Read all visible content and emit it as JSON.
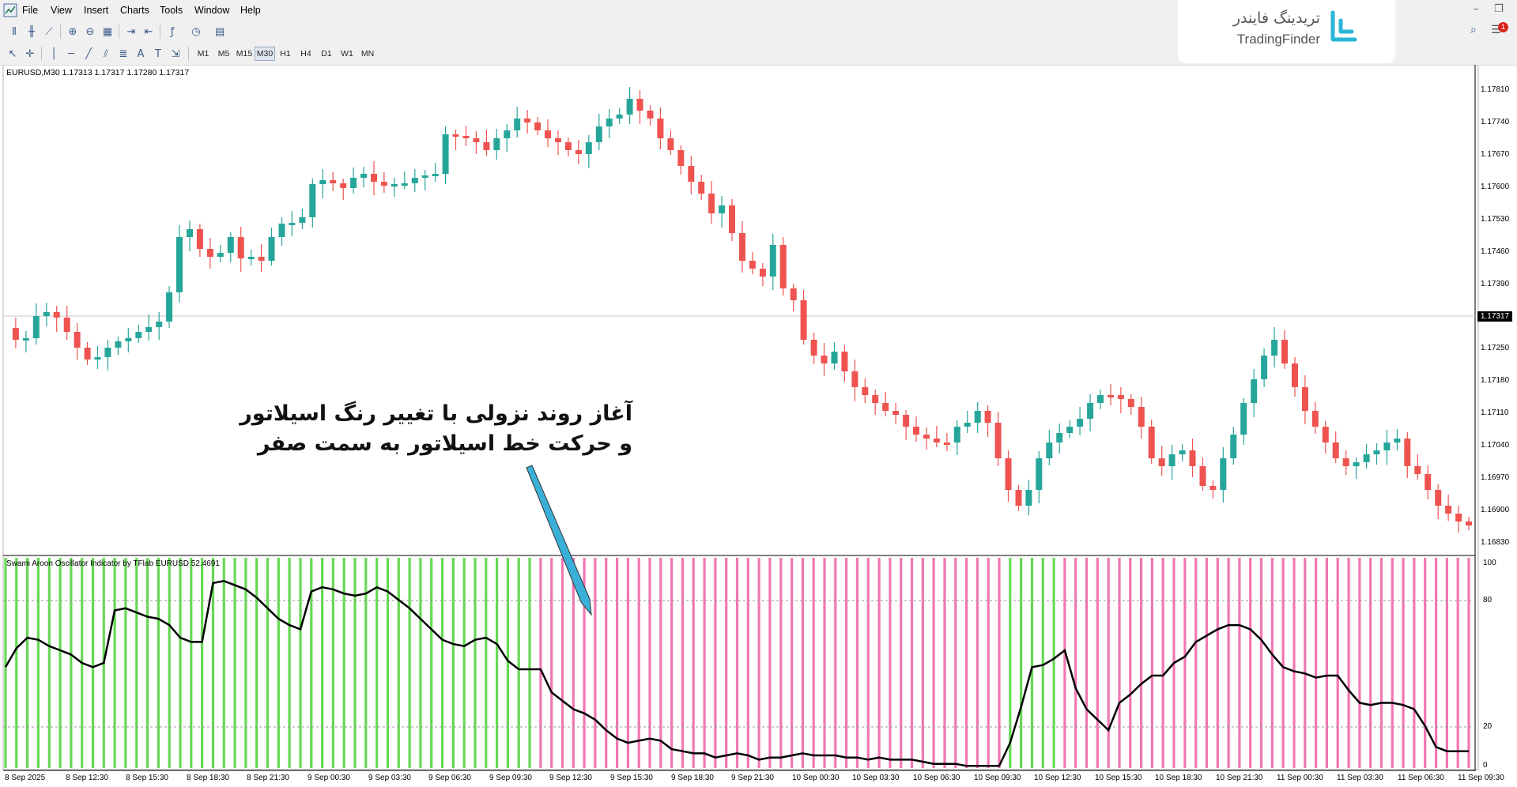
{
  "menu": [
    "File",
    "View",
    "Insert",
    "Charts",
    "Tools",
    "Window",
    "Help"
  ],
  "timeframes": [
    "M1",
    "M5",
    "M15",
    "M30",
    "H1",
    "H4",
    "D1",
    "W1",
    "MN"
  ],
  "active_timeframe": "M30",
  "notification_count": "1",
  "brand": {
    "fa": "تریدینگ فایندر",
    "en": "TradingFinder",
    "color": "#29b6d6"
  },
  "chart": {
    "symbol_line": "EURUSD,M30  1.17313 1.17317 1.17280 1.17317",
    "current_price": "1.17317",
    "price_labels": [
      "1.17810",
      "1.17740",
      "1.17670",
      "1.17600",
      "1.17530",
      "1.17460",
      "1.17390",
      "1.17250",
      "1.17180",
      "1.17110",
      "1.17040",
      "1.16970",
      "1.16900",
      "1.16830"
    ],
    "colors": {
      "bull": "#26a69a",
      "bear": "#ef5350"
    }
  },
  "indicator": {
    "label": "Swami Aroon Oscillator Indicator by TFlab EURUSD 52.4691",
    "scale": [
      "100",
      "80",
      "20",
      "0"
    ],
    "colors": {
      "bull_bar": "#4cd137",
      "bear_bar": "#ee5fa5",
      "line": "#000000"
    },
    "series": [
      48,
      57,
      62,
      61,
      58,
      56,
      54,
      50,
      48,
      50,
      75,
      76,
      74,
      72,
      71,
      68,
      62,
      60,
      60,
      88,
      89,
      87,
      85,
      81,
      76,
      71,
      68,
      66,
      84,
      86,
      85,
      83,
      82,
      83,
      86,
      84,
      80,
      76,
      71,
      66,
      61,
      59,
      58,
      61,
      62,
      59,
      51,
      47,
      47,
      47,
      36,
      32,
      28,
      26,
      23,
      18,
      14,
      12,
      13,
      14,
      13,
      9,
      8,
      7,
      7,
      5,
      6,
      7,
      6,
      4,
      5,
      5,
      6,
      7,
      6,
      6,
      6,
      5,
      5,
      4,
      5,
      4,
      4,
      4,
      3,
      2,
      2,
      2,
      1,
      1,
      1,
      1,
      12,
      29,
      48,
      49,
      52,
      56,
      38,
      28,
      23,
      18,
      31,
      35,
      40,
      44,
      44,
      50,
      53,
      60,
      63,
      66,
      68,
      68,
      66,
      61,
      54,
      48,
      46,
      45,
      43,
      44,
      44,
      37,
      31,
      30,
      31,
      31,
      30,
      28,
      20,
      10,
      8,
      8,
      8
    ]
  },
  "time_labels": [
    "8 Sep 2025",
    "8 Sep 12:30",
    "8 Sep 15:30",
    "8 Sep 18:30",
    "8 Sep 21:30",
    "9 Sep 00:30",
    "9 Sep 03:30",
    "9 Sep 06:30",
    "9 Sep 09:30",
    "9 Sep 12:30",
    "9 Sep 15:30",
    "9 Sep 18:30",
    "9 Sep 21:30",
    "10 Sep 00:30",
    "10 Sep 03:30",
    "10 Sep 06:30",
    "10 Sep 09:30",
    "10 Sep 12:30",
    "10 Sep 15:30",
    "10 Sep 18:30",
    "10 Sep 21:30",
    "11 Sep 00:30",
    "11 Sep 03:30",
    "11 Sep 06:30",
    "11 Sep 09:30"
  ],
  "annotation": {
    "line1": "آغاز روند نزولی با تغییر رنگ اسیلاتور",
    "line2": "و حرکت خط اسیلاتور به سمت صفر"
  }
}
